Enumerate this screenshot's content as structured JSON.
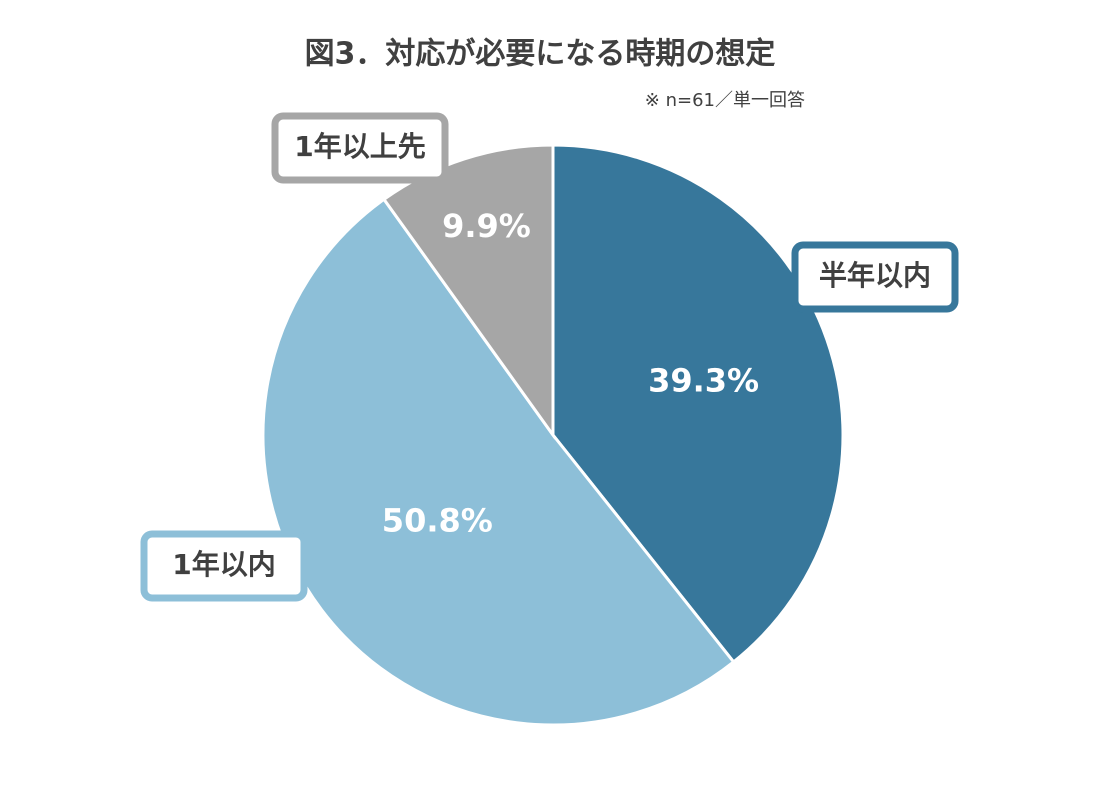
{
  "chart_data": {
    "type": "pie",
    "title": "図3．対応が必要になる時期の想定",
    "subtitle": "※ n=61／単一回答",
    "categories": [
      "半年以内",
      "1年以内",
      "1年以上先"
    ],
    "values": [
      39.3,
      50.8,
      9.9
    ],
    "value_labels": [
      "39.3%",
      "50.8%",
      "9.9%"
    ],
    "colors": [
      "#37779b",
      "#8dbfd8",
      "#a6a6a6"
    ]
  }
}
